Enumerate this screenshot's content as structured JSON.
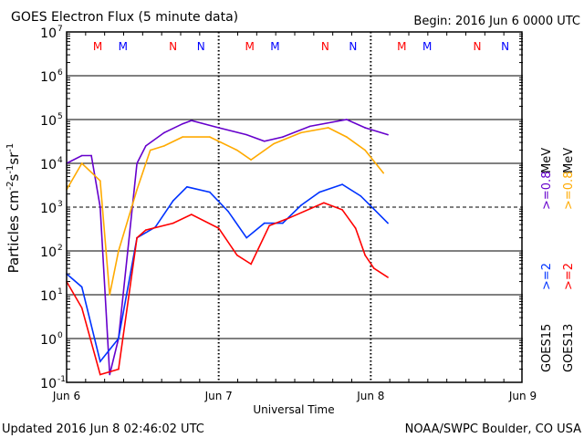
{
  "chart_data": {
    "type": "line",
    "title": "GOES Electron Flux (5 minute data)",
    "begin_label": "Begin: 2016 Jun 6 0000 UTC",
    "xlabel": "Universal Time",
    "ylabel": "Particles cm-2s-1sr-1",
    "ylabel_parts": {
      "base": "Particles cm",
      "e1": "-2",
      "s": "s",
      "e2": "-1",
      "sr": "sr",
      "e3": "-1"
    },
    "y_scale": "log",
    "ylim": [
      0.1,
      10000000
    ],
    "xlim_hours": [
      0,
      72
    ],
    "x_ticks": [
      {
        "hour": 0,
        "label": "Jun 6"
      },
      {
        "hour": 24,
        "label": "Jun 7"
      },
      {
        "hour": 48,
        "label": "Jun 8"
      },
      {
        "hour": 72,
        "label": "Jun 9"
      }
    ],
    "y_ticks": [
      {
        "exp": 7,
        "label": "10",
        "sup": "7"
      },
      {
        "exp": 6,
        "label": "10",
        "sup": "6"
      },
      {
        "exp": 5,
        "label": "10",
        "sup": "5"
      },
      {
        "exp": 4,
        "label": "10",
        "sup": "4"
      },
      {
        "exp": 3,
        "label": "10",
        "sup": "3"
      },
      {
        "exp": 2,
        "label": "10",
        "sup": "2"
      },
      {
        "exp": 1,
        "label": "10",
        "sup": "1"
      },
      {
        "exp": 0,
        "label": "10",
        "sup": "0"
      },
      {
        "exp": -1,
        "label": "10",
        "sup": "-1"
      }
    ],
    "threshold_line": 1000,
    "grid": true,
    "markers": [
      {
        "label": "M",
        "hour": 4.9,
        "color": "#ff0000"
      },
      {
        "label": "M",
        "hour": 8.9,
        "color": "#0000ff"
      },
      {
        "label": "N",
        "hour": 16.8,
        "color": "#ff0000"
      },
      {
        "label": "N",
        "hour": 21.2,
        "color": "#0000ff"
      },
      {
        "label": "M",
        "hour": 28.9,
        "color": "#ff0000"
      },
      {
        "label": "M",
        "hour": 32.9,
        "color": "#0000ff"
      },
      {
        "label": "N",
        "hour": 40.8,
        "color": "#ff0000"
      },
      {
        "label": "N",
        "hour": 45.2,
        "color": "#0000ff"
      },
      {
        "label": "M",
        "hour": 52.9,
        "color": "#ff0000"
      },
      {
        "label": "M",
        "hour": 56.9,
        "color": "#0000ff"
      },
      {
        "label": "N",
        "hour": 64.8,
        "color": "#ff0000"
      },
      {
        "label": "N",
        "hour": 69.2,
        "color": "#0000ff"
      }
    ],
    "legend": {
      "goes15": "GOES15",
      "goes13": "GOES13",
      "ge2": ">=2",
      "ge08": ">=0.8",
      "mev": "MeV"
    },
    "series": [
      {
        "name": "GOES15 >=0.8 MeV",
        "color": "#6600cc",
        "points": [
          [
            0,
            10000.0
          ],
          [
            2.4,
            15000.0
          ],
          [
            3.9,
            15000.0
          ],
          [
            5.3,
            1000.0
          ],
          [
            6.8,
            0.15
          ],
          [
            8.2,
            1
          ],
          [
            11.1,
            10000.0
          ],
          [
            12.5,
            25000.0
          ],
          [
            15.4,
            50000.0
          ],
          [
            18.3,
            80000.0
          ],
          [
            19.7,
            95000.0
          ],
          [
            24,
            65000.0
          ],
          [
            28.4,
            45000.0
          ],
          [
            31.2,
            32000.0
          ],
          [
            34.1,
            40000.0
          ],
          [
            38.4,
            70000.0
          ],
          [
            44.2,
            100000.0
          ],
          [
            47.1,
            65000.0
          ],
          [
            50.7,
            45000.0
          ]
        ]
      },
      {
        "name": "GOES13 >=0.8 MeV",
        "color": "#ffaa00",
        "points": [
          [
            0,
            2500.0
          ],
          [
            2.4,
            10000.0
          ],
          [
            5.3,
            4000.0
          ],
          [
            6.8,
            10
          ],
          [
            8.2,
            100
          ],
          [
            11.1,
            2500.0
          ],
          [
            13.2,
            20000.0
          ],
          [
            15.4,
            25000.0
          ],
          [
            18.3,
            40000.0
          ],
          [
            22.6,
            40000.0
          ],
          [
            26.9,
            20000.0
          ],
          [
            29.1,
            12000.0
          ],
          [
            32.7,
            28000.0
          ],
          [
            37,
            50000.0
          ],
          [
            41.3,
            65000.0
          ],
          [
            44.2,
            40000.0
          ],
          [
            47.1,
            20000.0
          ],
          [
            50,
            6000.0
          ]
        ]
      },
      {
        "name": "GOES15 >=2 MeV",
        "color": "#0033ff",
        "points": [
          [
            0,
            30
          ],
          [
            2.4,
            15
          ],
          [
            5.3,
            0.3
          ],
          [
            8.2,
            1
          ],
          [
            11.1,
            200
          ],
          [
            14,
            350
          ],
          [
            16.8,
            1400
          ],
          [
            19,
            2900
          ],
          [
            22.6,
            2200
          ],
          [
            25.5,
            800
          ],
          [
            28.4,
            200
          ],
          [
            31.2,
            430
          ],
          [
            34.1,
            430
          ],
          [
            37,
            1100
          ],
          [
            39.9,
            2200
          ],
          [
            43.5,
            3300
          ],
          [
            46.4,
            1800
          ],
          [
            48.5,
            900
          ],
          [
            50.7,
            430
          ]
        ]
      },
      {
        "name": "GOES13 >=2 MeV",
        "color": "#ff0000",
        "points": [
          [
            0,
            20
          ],
          [
            2.4,
            5
          ],
          [
            5.3,
            0.15
          ],
          [
            8.2,
            0.2
          ],
          [
            11.1,
            200
          ],
          [
            12.5,
            300
          ],
          [
            16.8,
            430
          ],
          [
            19.7,
            680
          ],
          [
            24,
            330
          ],
          [
            26.9,
            80
          ],
          [
            29.1,
            50
          ],
          [
            32,
            380
          ],
          [
            34.8,
            540
          ],
          [
            40.6,
            1250
          ],
          [
            43.5,
            870
          ],
          [
            45.6,
            330
          ],
          [
            47.1,
            80
          ],
          [
            48.5,
            40
          ],
          [
            50.7,
            25
          ]
        ]
      }
    ]
  },
  "footer": {
    "updated": "Updated 2016 Jun  8 02:46:02 UTC",
    "credit": "NOAA/SWPC Boulder, CO USA"
  }
}
